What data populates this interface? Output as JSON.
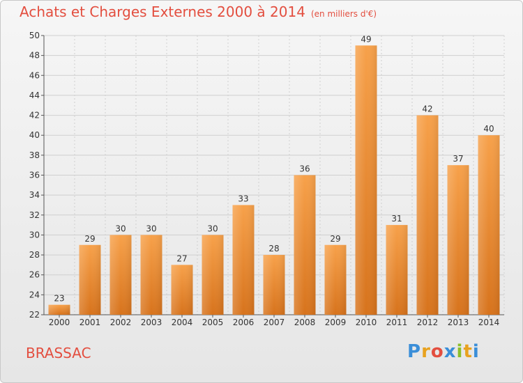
{
  "header": {
    "title": "Achats et Charges Externes 2000 à 2014",
    "subtitle": "(en milliers d'€)"
  },
  "footer": {
    "place": "BRASSAC",
    "logo": [
      "P",
      "r",
      "o",
      "x",
      "i",
      "t",
      "i"
    ],
    "logo_colors": [
      "#3a8ed8",
      "#e8a21f",
      "#e34e3f",
      "#3a8ed8",
      "#8bbf2b",
      "#e8a21f",
      "#3a8ed8"
    ]
  },
  "colors": {
    "bar_top": "#f7a14a",
    "bar_bottom": "#d7731c",
    "grid": "#cfcfcf",
    "text": "#333333",
    "accent": "#e34e3f"
  },
  "chart_data": {
    "type": "bar",
    "title": "Achats et Charges Externes 2000 à 2014",
    "subtitle": "(en milliers d'€)",
    "categories": [
      "2000",
      "2001",
      "2002",
      "2003",
      "2004",
      "2005",
      "2006",
      "2007",
      "2008",
      "2009",
      "2010",
      "2011",
      "2012",
      "2013",
      "2014"
    ],
    "values": [
      23,
      29,
      30,
      30,
      27,
      30,
      33,
      28,
      36,
      29,
      49,
      31,
      42,
      37,
      40
    ],
    "ylim": [
      22,
      50
    ],
    "yticks": [
      22,
      24,
      26,
      28,
      30,
      32,
      34,
      36,
      38,
      40,
      42,
      44,
      46,
      48,
      50
    ],
    "grid": true,
    "data_labels": true
  }
}
